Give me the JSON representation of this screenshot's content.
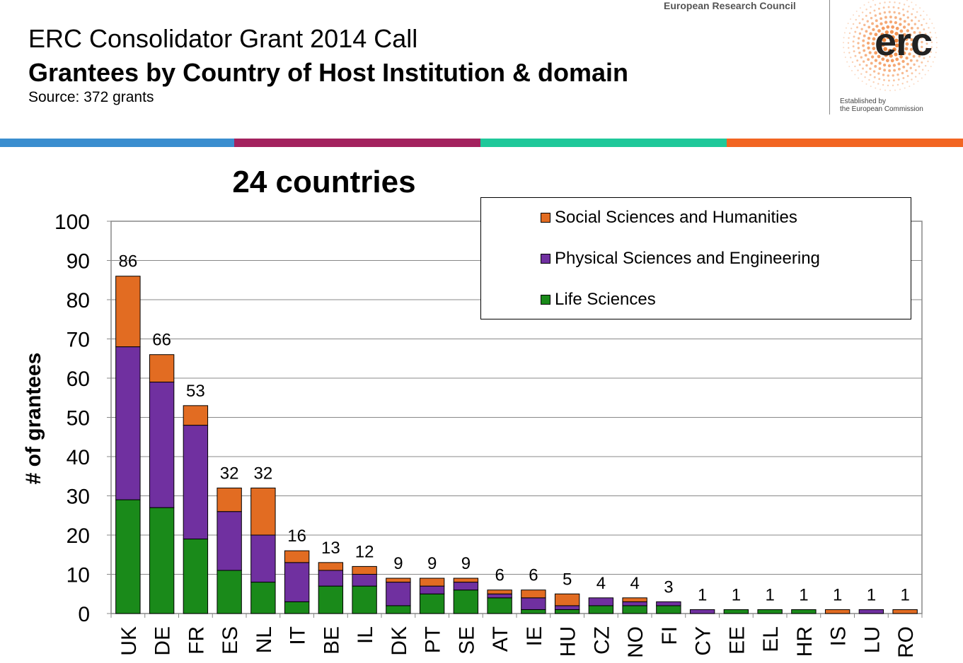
{
  "header": {
    "title_line1": "ERC Consolidator Grant 2014 Call",
    "title_line2": "Grantees by Country of Host Institution & domain",
    "source": "Source: 372 grants"
  },
  "logo": {
    "org_name": "European Research Council",
    "wordmark": "erc",
    "established_line1": "Established by",
    "established_line2": "the European Commission"
  },
  "stripe_colors": [
    "#3a8ecf",
    "#a3225e",
    "#1fc89a",
    "#f26522"
  ],
  "chart_data": {
    "type": "bar",
    "stacked": true,
    "title": "24 countries",
    "xlabel": "",
    "ylabel": "# of grantees",
    "ylim": [
      0,
      100
    ],
    "yticks": [
      0,
      10,
      20,
      30,
      40,
      50,
      60,
      70,
      80,
      90,
      100
    ],
    "grid": true,
    "legend_position": "top-right",
    "categories": [
      "UK",
      "DE",
      "FR",
      "ES",
      "NL",
      "IT",
      "BE",
      "IL",
      "DK",
      "PT",
      "SE",
      "AT",
      "IE",
      "HU",
      "CZ",
      "NO",
      "FI",
      "CY",
      "EE",
      "EL",
      "HR",
      "IS",
      "LU",
      "RO"
    ],
    "series": [
      {
        "name": "Life Sciences",
        "color": "#1a8a1a",
        "values": [
          29,
          27,
          19,
          11,
          8,
          3,
          7,
          7,
          2,
          5,
          6,
          4,
          1,
          1,
          2,
          2,
          2,
          0,
          1,
          1,
          1,
          0,
          0,
          0
        ]
      },
      {
        "name": "Physical Sciences and Engineering",
        "color": "#7030a0",
        "values": [
          39,
          32,
          29,
          15,
          12,
          10,
          4,
          3,
          6,
          2,
          2,
          1,
          3,
          1,
          2,
          1,
          1,
          1,
          0,
          0,
          0,
          0,
          1,
          0
        ]
      },
      {
        "name": "Social Sciences and Humanities",
        "color": "#e26c22",
        "values": [
          18,
          7,
          5,
          6,
          12,
          3,
          2,
          2,
          1,
          2,
          1,
          1,
          2,
          3,
          0,
          1,
          0,
          0,
          0,
          0,
          0,
          1,
          0,
          1
        ]
      }
    ],
    "totals": [
      86,
      66,
      53,
      32,
      32,
      16,
      13,
      12,
      9,
      9,
      9,
      6,
      6,
      5,
      4,
      4,
      3,
      1,
      1,
      1,
      1,
      1,
      1,
      1
    ],
    "legend_order": [
      "Social Sciences and Humanities",
      "Physical Sciences and Engineering",
      "Life Sciences"
    ]
  }
}
